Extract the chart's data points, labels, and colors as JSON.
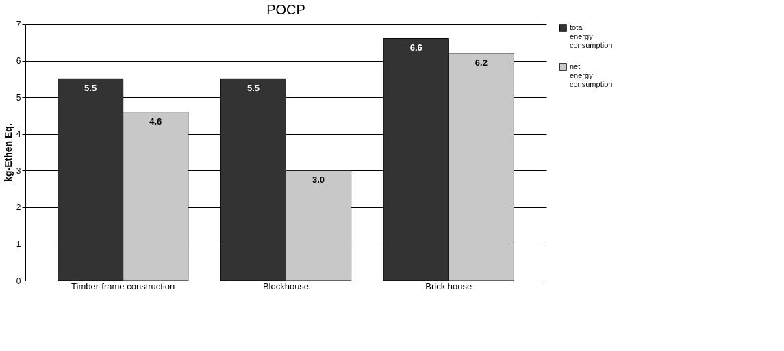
{
  "chart_data": {
    "type": "bar",
    "title": "POCP",
    "ylabel": "kg-Ethen Eq.",
    "categories": [
      "Timber-frame construction",
      "Blockhouse",
      "Brick house"
    ],
    "series": [
      {
        "name": "total energy consumption",
        "color": "#333333",
        "values": [
          5.5,
          5.5,
          6.6
        ],
        "value_labels": [
          "5.5",
          "5.5",
          "6.6"
        ]
      },
      {
        "name": "net energy consumption",
        "color": "#c8c8c8",
        "values": [
          4.6,
          3.0,
          6.2
        ],
        "value_labels": [
          "4.6",
          "3.0",
          "6.2"
        ]
      }
    ],
    "ylim": [
      0,
      7
    ],
    "yticks": [
      0,
      1,
      2,
      3,
      4,
      5,
      6,
      7
    ],
    "grid": "y",
    "legend": "right"
  }
}
